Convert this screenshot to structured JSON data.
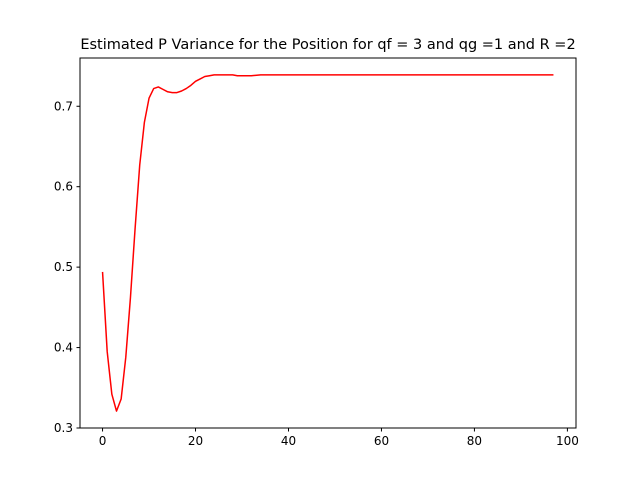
{
  "chart_data": {
    "type": "line",
    "title": "Estimated P Variance for the Position for qf = 3 and qg =1 and  R =2",
    "xlabel": "",
    "ylabel": "",
    "xlim": [
      -4.85,
      101.85
    ],
    "ylim": [
      0.3,
      0.76
    ],
    "xticks": [
      0,
      20,
      40,
      60,
      80,
      100
    ],
    "yticks": [
      0.3,
      0.4,
      0.5,
      0.6,
      0.7
    ],
    "xtick_labels": [
      "0",
      "20",
      "40",
      "60",
      "80",
      "100"
    ],
    "ytick_labels": [
      "0.3",
      "0.4",
      "0.5",
      "0.6",
      "0.7"
    ],
    "grid": false,
    "series": [
      {
        "color": "#ff0000",
        "x": [
          0,
          1,
          2,
          3,
          4,
          5,
          6,
          7,
          8,
          9,
          10,
          11,
          12,
          13,
          14,
          15,
          16,
          17,
          18,
          19,
          20,
          21,
          22,
          23,
          24,
          25,
          26,
          27,
          28,
          29,
          30,
          32,
          34,
          36,
          38,
          40,
          45,
          50,
          55,
          60,
          65,
          70,
          75,
          80,
          85,
          90,
          95,
          97
        ],
        "values": [
          0.494,
          0.395,
          0.342,
          0.321,
          0.336,
          0.388,
          0.462,
          0.548,
          0.627,
          0.68,
          0.71,
          0.722,
          0.724,
          0.721,
          0.718,
          0.717,
          0.717,
          0.719,
          0.722,
          0.726,
          0.731,
          0.734,
          0.737,
          0.738,
          0.739,
          0.739,
          0.739,
          0.739,
          0.739,
          0.738,
          0.738,
          0.738,
          0.739,
          0.739,
          0.739,
          0.739,
          0.739,
          0.739,
          0.739,
          0.739,
          0.739,
          0.739,
          0.739,
          0.739,
          0.739,
          0.739,
          0.739,
          0.739
        ]
      }
    ]
  }
}
